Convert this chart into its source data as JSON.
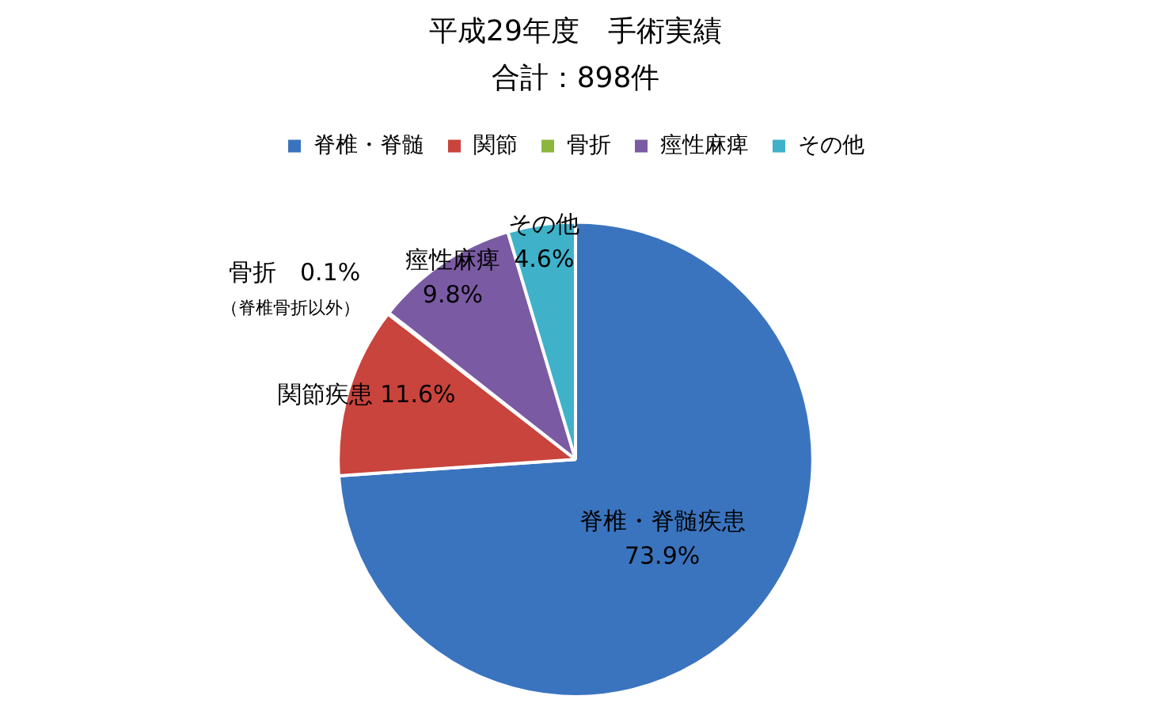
{
  "chart_data": {
    "type": "pie",
    "title": "平成29年度　手術実績",
    "subtitle": "合計：898件",
    "categories": [
      "脊椎・脊髄",
      "関節",
      "骨折",
      "痙性麻痺",
      "その他"
    ],
    "values": [
      73.9,
      11.6,
      0.1,
      9.8,
      4.6
    ],
    "colors": [
      "#3a74bf",
      "#c9443c",
      "#8cb63e",
      "#7a5ba3",
      "#3fb2ca"
    ],
    "value_labels": [
      "脊椎・脊髄疾患\n73.9%",
      "関節疾患 11.6%",
      "骨折　0.1%\n（脊椎骨折以外）",
      "痙性麻痺\n9.8%",
      "その他\n4.6%"
    ],
    "legend": "top"
  }
}
